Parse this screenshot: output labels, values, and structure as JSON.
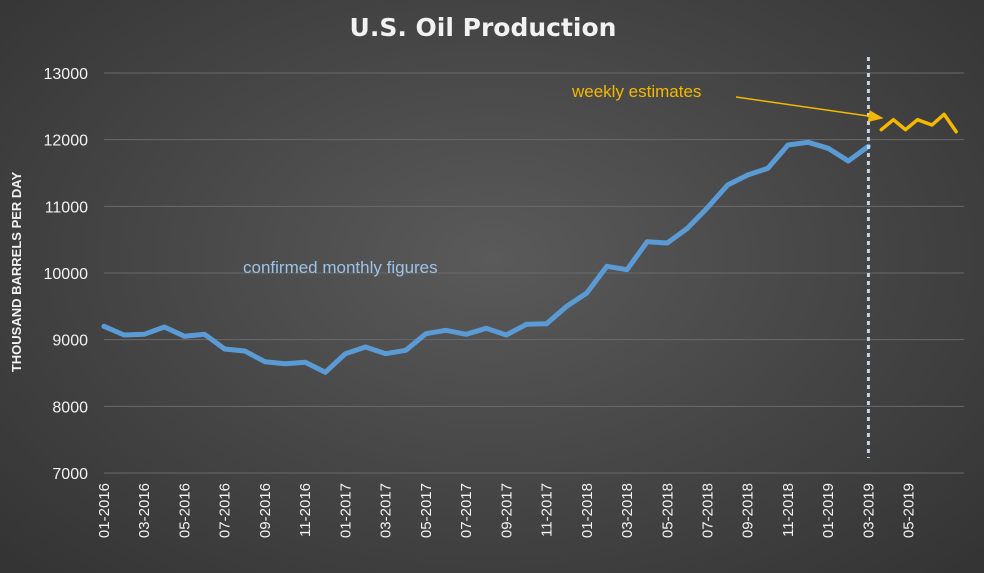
{
  "chart_data": {
    "type": "line",
    "title": "U.S. Oil Production",
    "xlabel": "",
    "ylabel": "THOUSAND BARRELS PER DAY",
    "ylim": [
      7000,
      13000
    ],
    "yticks": [
      7000,
      8000,
      9000,
      10000,
      11000,
      12000,
      13000
    ],
    "xticks": [
      "01-2016",
      "03-2016",
      "05-2016",
      "07-2016",
      "09-2016",
      "11-2016",
      "01-2017",
      "03-2017",
      "05-2017",
      "07-2017",
      "09-2017",
      "11-2017",
      "01-2018",
      "03-2018",
      "05-2018",
      "07-2018",
      "09-2018",
      "11-2018",
      "01-2019",
      "03-2019",
      "05-2019"
    ],
    "grid": "horizontal",
    "legend": "none",
    "series": [
      {
        "color": "#5b9bd5",
        "x": [
          "01-2016",
          "02-2016",
          "03-2016",
          "04-2016",
          "05-2016",
          "06-2016",
          "07-2016",
          "08-2016",
          "09-2016",
          "10-2016",
          "11-2016",
          "12-2016",
          "01-2017",
          "02-2017",
          "03-2017",
          "04-2017",
          "05-2017",
          "06-2017",
          "07-2017",
          "08-2017",
          "09-2017",
          "10-2017",
          "11-2017",
          "12-2017",
          "01-2018",
          "02-2018",
          "03-2018",
          "04-2018",
          "05-2018",
          "06-2018",
          "07-2018",
          "08-2018",
          "09-2018",
          "10-2018",
          "11-2018",
          "12-2018",
          "01-2019",
          "02-2019",
          "03-2019"
        ],
        "values": [
          9200,
          9070,
          9080,
          9190,
          9050,
          9080,
          8860,
          8830,
          8670,
          8640,
          8660,
          8510,
          8790,
          8890,
          8790,
          8840,
          9090,
          9140,
          9080,
          9170,
          9070,
          9230,
          9240,
          9500,
          9700,
          10100,
          10050,
          10470,
          10450,
          10670,
          10980,
          11320,
          11470,
          11570,
          11920,
          11960,
          11870,
          11680,
          11900
        ]
      },
      {
        "color": "#f5b800",
        "x": [
          2019.22,
          2019.27,
          2019.32,
          2019.37,
          2019.43,
          2019.48,
          2019.53
        ],
        "values": [
          12150,
          12300,
          12150,
          12300,
          12220,
          12380,
          12120
        ]
      }
    ],
    "annotations": [
      {
        "text": "weekly estimates",
        "color": "#f5b800"
      },
      {
        "text": "confirmed monthly figures",
        "color": "#9dc3e6"
      }
    ],
    "divider_at": "03-2019"
  }
}
